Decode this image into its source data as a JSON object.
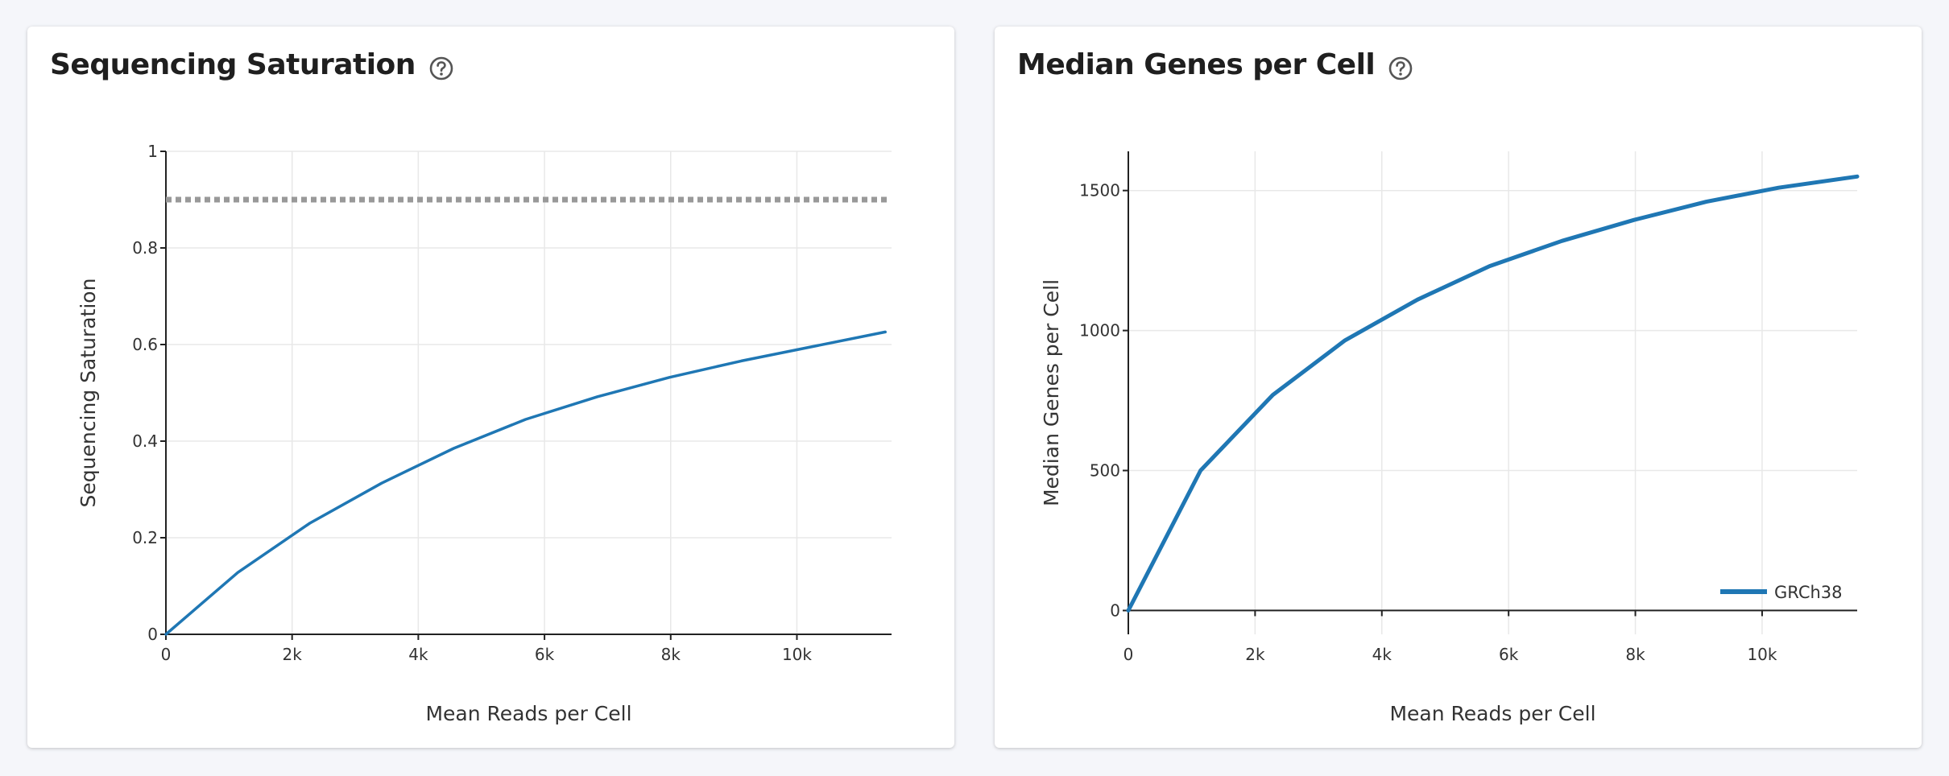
{
  "cards": [
    {
      "title": "Sequencing Saturation",
      "help_icon": "question-circle-icon"
    },
    {
      "title": "Median Genes per Cell",
      "help_icon": "question-circle-icon"
    }
  ],
  "chart_data": [
    {
      "type": "line",
      "title": "Sequencing Saturation",
      "xlabel": "Mean Reads per Cell",
      "ylabel": "Sequencing Saturation",
      "xlim": [
        0,
        11500
      ],
      "ylim": [
        0,
        1
      ],
      "xticks": [
        0,
        2000,
        4000,
        6000,
        8000,
        10000
      ],
      "xtick_labels": [
        "0",
        "2k",
        "4k",
        "6k",
        "8k",
        "10k"
      ],
      "yticks": [
        0,
        0.2,
        0.4,
        0.6,
        0.8,
        1
      ],
      "ytick_labels": [
        "0",
        "0.2",
        "0.4",
        "0.6",
        "0.8",
        "1"
      ],
      "grid": true,
      "reference_line": {
        "y": 0.9,
        "style": "dotted",
        "color": "#999999"
      },
      "series": [
        {
          "color": "#1f77b4",
          "x": [
            0,
            1140,
            2280,
            3420,
            4560,
            5700,
            6840,
            7980,
            9120,
            10260,
            11400
          ],
          "y": [
            0,
            0.128,
            0.23,
            0.313,
            0.385,
            0.445,
            0.492,
            0.532,
            0.566,
            0.596,
            0.626
          ]
        }
      ]
    },
    {
      "type": "line",
      "title": "Median Genes per Cell",
      "xlabel": "Mean Reads per Cell",
      "ylabel": "Median Genes per Cell",
      "xlim": [
        0,
        11500
      ],
      "ylim": [
        -85,
        1640
      ],
      "xticks": [
        0,
        2000,
        4000,
        6000,
        8000,
        10000
      ],
      "xtick_labels": [
        "0",
        "2k",
        "4k",
        "6k",
        "8k",
        "10k"
      ],
      "yticks": [
        0,
        500,
        1000,
        1500
      ],
      "ytick_labels": [
        "0",
        "500",
        "1000",
        "1500"
      ],
      "grid": true,
      "legend": "bottom-right",
      "series": [
        {
          "name": "GRCh38",
          "color": "#1f77b4",
          "x": [
            0,
            1140,
            2280,
            3420,
            4560,
            5700,
            6840,
            7980,
            9120,
            10260,
            11500
          ],
          "y": [
            0,
            500,
            770,
            965,
            1110,
            1230,
            1320,
            1395,
            1460,
            1510,
            1550
          ]
        }
      ]
    }
  ]
}
